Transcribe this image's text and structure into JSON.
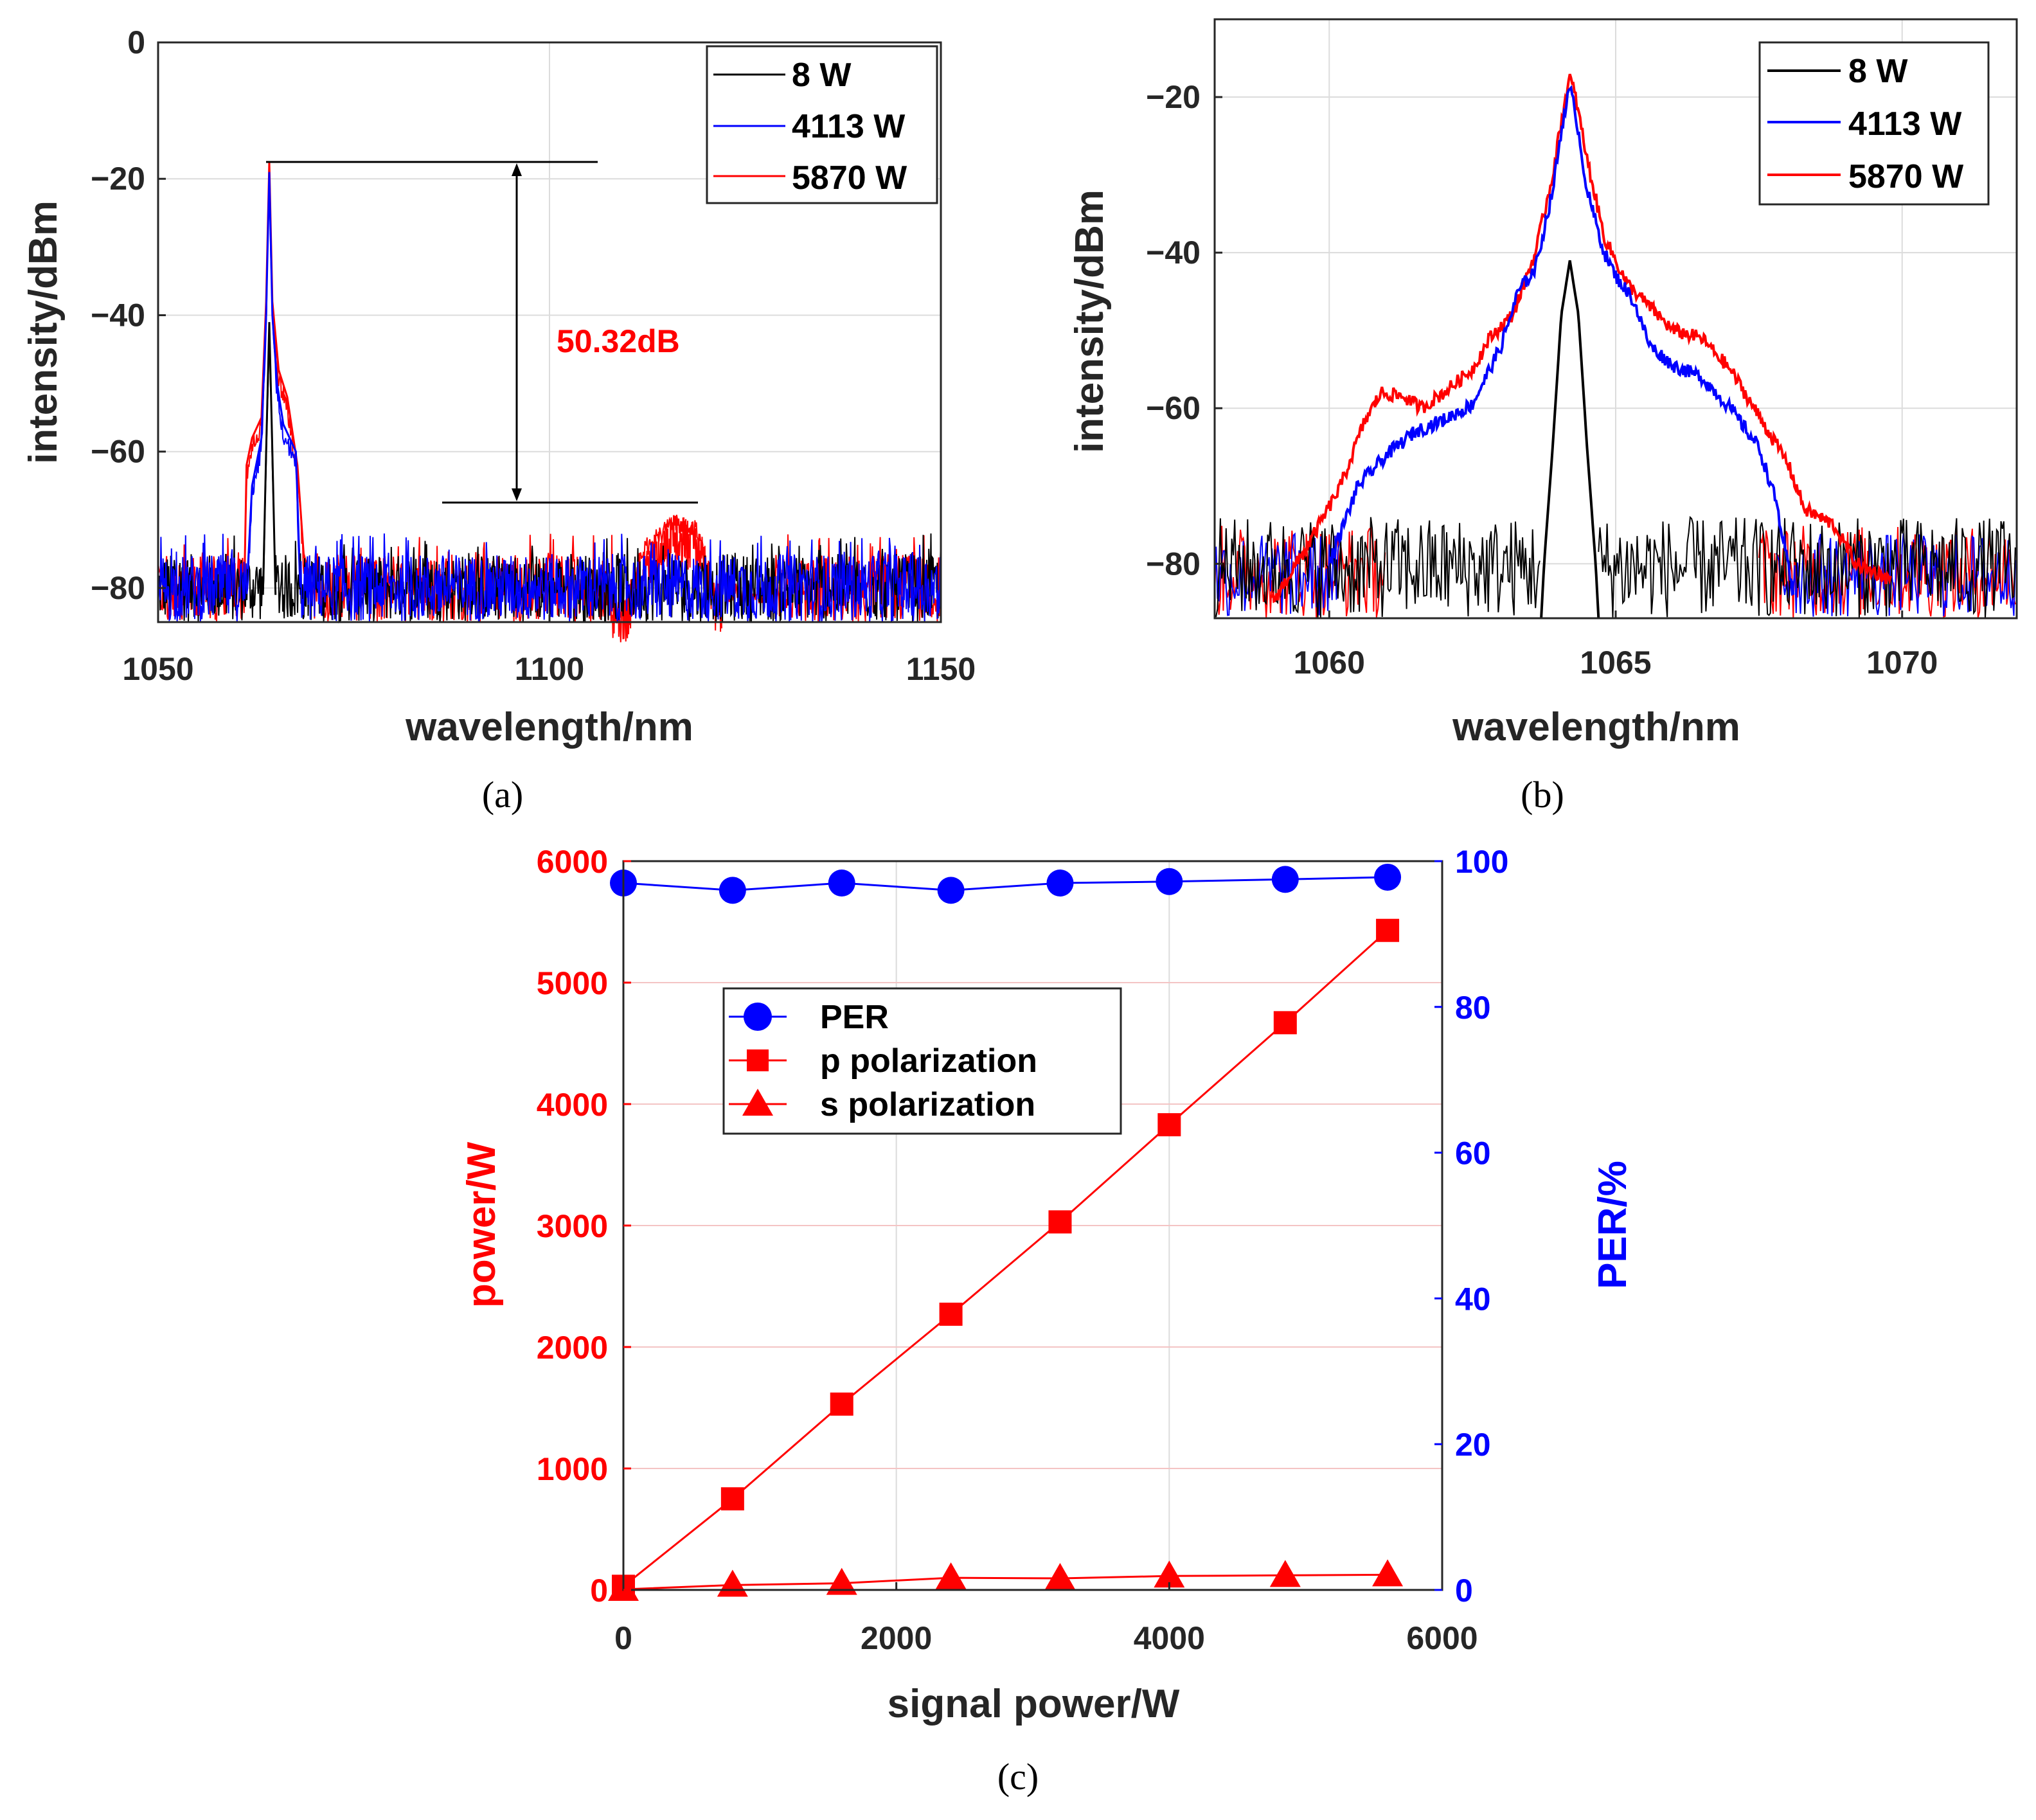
{
  "colors": {
    "black": "#000000",
    "blue": "#0000ff",
    "red": "#ff0000",
    "grid": "#dcdcdc",
    "gridRed": "#f4c4c4"
  },
  "chart_data": [
    {
      "id": "a",
      "type": "line",
      "caption": "(a)",
      "xlabel": "wavelength/nm",
      "ylabel": "intensity/dBm",
      "xlim": [
        1050,
        1150
      ],
      "ylim": [
        -85,
        0
      ],
      "xticks": [
        1050,
        1100,
        1150
      ],
      "yticks": [
        0,
        -20,
        -40,
        -60,
        -80
      ],
      "ytick_labels": [
        "0",
        "−20",
        "−40",
        "−60",
        "−80"
      ],
      "legend": [
        "8 W",
        "4113 W",
        "5870 W"
      ],
      "legend_position": "top-right",
      "annotation": {
        "text": "50.32dB",
        "top_dBm": -17.5,
        "bottom_dBm": -67.8
      },
      "series": [
        {
          "name": "8 W",
          "color": "#000000",
          "peak_nm": 1064.2,
          "peak_dBm": -41,
          "noise_floor": -79,
          "points": [
            [
              1050,
              -81
            ],
            [
              1063.4,
              -81
            ],
            [
              1063.8,
              -60
            ],
            [
              1064.2,
              -41
            ],
            [
              1064.6,
              -60
            ],
            [
              1065.0,
              -81
            ],
            [
              1150,
              -81
            ]
          ]
        },
        {
          "name": "4113 W",
          "color": "#0000ff",
          "peak_nm": 1064.2,
          "peak_dBm": -19,
          "noise_floor": -79,
          "points": [
            [
              1050,
              -81
            ],
            [
              1061.3,
              -81
            ],
            [
              1062.0,
              -65
            ],
            [
              1063.2,
              -58
            ],
            [
              1063.8,
              -40
            ],
            [
              1064.2,
              -19
            ],
            [
              1064.6,
              -40
            ],
            [
              1065.2,
              -50
            ],
            [
              1066.0,
              -56
            ],
            [
              1067.6,
              -60
            ],
            [
              1068.2,
              -81
            ],
            [
              1150,
              -81
            ]
          ]
        },
        {
          "name": "5870 W",
          "color": "#ff0000",
          "peak_nm": 1064.2,
          "peak_dBm": -17.5,
          "noise_floor": -79,
          "points": [
            [
              1050,
              -81
            ],
            [
              1061.0,
              -81
            ],
            [
              1061.3,
              -62
            ],
            [
              1062.0,
              -58
            ],
            [
              1063.2,
              -55
            ],
            [
              1063.8,
              -38
            ],
            [
              1064.2,
              -17.5
            ],
            [
              1064.6,
              -38
            ],
            [
              1065.4,
              -48
            ],
            [
              1066.5,
              -52
            ],
            [
              1067.8,
              -62
            ],
            [
              1068.6,
              -75
            ],
            [
              1070,
              -81
            ],
            [
              1110,
              -80
            ],
            [
              1112,
              -73
            ],
            [
              1116,
              -69
            ],
            [
              1119,
              -70
            ],
            [
              1121,
              -79
            ],
            [
              1150,
              -81
            ]
          ]
        }
      ]
    },
    {
      "id": "b",
      "type": "line",
      "caption": "(b)",
      "xlabel": "wavelength/nm",
      "ylabel": "intensity/dBm",
      "xlim": [
        1058,
        1072
      ],
      "ylim": [
        -87,
        -10
      ],
      "xticks": [
        1060,
        1065,
        1070
      ],
      "yticks": [
        -20,
        -40,
        -60,
        -80
      ],
      "ytick_labels": [
        "−20",
        "−40",
        "−60",
        "−80"
      ],
      "legend": [
        "8 W",
        "4113 W",
        "5870 W"
      ],
      "legend_position": "top-right",
      "series": [
        {
          "name": "8 W",
          "color": "#000000",
          "points": [
            [
              1063.7,
              -87
            ],
            [
              1063.75,
              -80
            ],
            [
              1063.9,
              -65
            ],
            [
              1064.05,
              -48
            ],
            [
              1064.2,
              -41
            ],
            [
              1064.35,
              -48
            ],
            [
              1064.5,
              -65
            ],
            [
              1064.65,
              -80
            ],
            [
              1064.7,
              -87
            ]
          ]
        },
        {
          "name": "4113 W",
          "color": "#0000ff",
          "points": [
            [
              1060,
              -80
            ],
            [
              1060.5,
              -70
            ],
            [
              1061.0,
              -66
            ],
            [
              1061.5,
              -63
            ],
            [
              1062.0,
              -61.5
            ],
            [
              1062.5,
              -59.5
            ],
            [
              1063.0,
              -52
            ],
            [
              1063.3,
              -45
            ],
            [
              1063.6,
              -42
            ],
            [
              1063.9,
              -32
            ],
            [
              1064.1,
              -22
            ],
            [
              1064.2,
              -19
            ],
            [
              1064.3,
              -22
            ],
            [
              1064.5,
              -32
            ],
            [
              1064.8,
              -40
            ],
            [
              1065.0,
              -43
            ],
            [
              1065.3,
              -46
            ],
            [
              1065.6,
              -52
            ],
            [
              1066.0,
              -54.5
            ],
            [
              1066.5,
              -56
            ],
            [
              1067.0,
              -60
            ],
            [
              1067.5,
              -65
            ],
            [
              1067.8,
              -72
            ],
            [
              1068.1,
              -84
            ]
          ]
        },
        {
          "name": "5870 W",
          "color": "#ff0000",
          "points": [
            [
              1059.0,
              -85
            ],
            [
              1059.6,
              -78
            ],
            [
              1060.2,
              -70
            ],
            [
              1060.6,
              -62
            ],
            [
              1060.9,
              -58
            ],
            [
              1061.3,
              -58.5
            ],
            [
              1061.6,
              -60
            ],
            [
              1062.0,
              -58
            ],
            [
              1062.5,
              -55
            ],
            [
              1062.8,
              -51
            ],
            [
              1063.2,
              -48
            ],
            [
              1063.6,
              -40
            ],
            [
              1063.9,
              -30
            ],
            [
              1064.1,
              -21
            ],
            [
              1064.2,
              -17.5
            ],
            [
              1064.3,
              -20
            ],
            [
              1064.5,
              -28
            ],
            [
              1064.8,
              -38
            ],
            [
              1065.2,
              -44
            ],
            [
              1065.6,
              -47
            ],
            [
              1066.0,
              -50
            ],
            [
              1066.5,
              -51
            ],
            [
              1067.0,
              -55
            ],
            [
              1067.5,
              -61
            ],
            [
              1068.0,
              -67
            ],
            [
              1068.3,
              -73
            ],
            [
              1068.8,
              -75
            ],
            [
              1069.2,
              -80
            ],
            [
              1069.8,
              -82
            ]
          ]
        }
      ]
    },
    {
      "id": "c",
      "type": "line",
      "caption": "(c)",
      "xlabel": "signal power/W",
      "ylabel": "power/W",
      "y2label": "PER/%",
      "xlim": [
        0,
        6000
      ],
      "ylim": [
        0,
        6000
      ],
      "y2lim": [
        0,
        100
      ],
      "xticks": [
        0,
        2000,
        4000,
        6000
      ],
      "yticks": [
        0,
        1000,
        2000,
        3000,
        4000,
        5000,
        6000
      ],
      "y2ticks": [
        0,
        20,
        40,
        60,
        80,
        100
      ],
      "legend": [
        "PER",
        "p polarization",
        "s  polarization"
      ],
      "legend_position": "upper-left",
      "series": [
        {
          "name": "PER",
          "axis": "right",
          "color": "#0000ff",
          "marker": "circle",
          "x": [
            0,
            800,
            1600,
            2400,
            3200,
            4000,
            4850,
            5600
          ],
          "values": [
            97,
            96,
            97,
            96,
            97,
            97.2,
            97.5,
            97.8
          ]
        },
        {
          "name": "p polarization",
          "axis": "left",
          "color": "#ff0000",
          "marker": "square",
          "x": [
            0,
            800,
            1600,
            2400,
            3200,
            4000,
            4850,
            5600
          ],
          "values": [
            30,
            750,
            1530,
            2270,
            3030,
            3830,
            4670,
            5430
          ]
        },
        {
          "name": "s  polarization",
          "axis": "left",
          "color": "#ff0000",
          "marker": "triangle",
          "x": [
            0,
            800,
            1600,
            2400,
            3200,
            4000,
            4850,
            5600
          ],
          "values": [
            5,
            40,
            55,
            100,
            95,
            115,
            120,
            125
          ]
        }
      ]
    }
  ]
}
